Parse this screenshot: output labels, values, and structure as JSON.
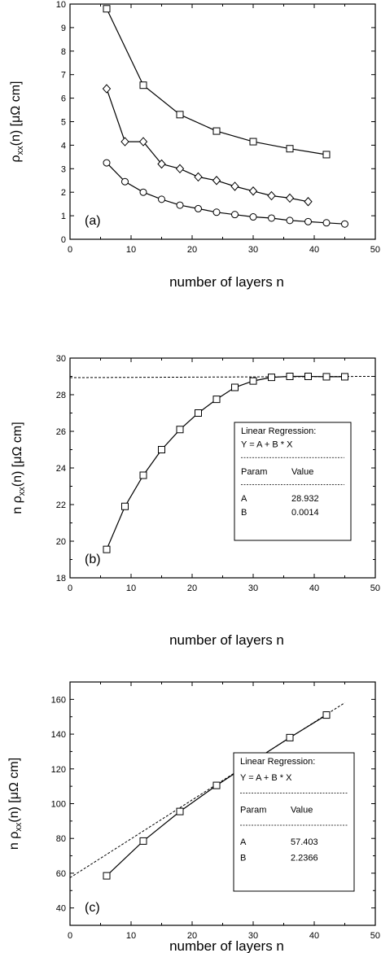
{
  "chart_data": [
    {
      "type": "line",
      "panel_label": "(a)",
      "xlabel": "number of layers n",
      "ylabel": "ρxx(n)  [μΩ cm]",
      "xlim": [
        0,
        50
      ],
      "ylim": [
        0,
        10
      ],
      "xticks": [
        "0",
        "10",
        "20",
        "30",
        "40",
        "50"
      ],
      "yticks": [
        "0",
        "1",
        "2",
        "3",
        "4",
        "5",
        "6",
        "7",
        "8",
        "9",
        "10"
      ],
      "grid": false,
      "series": [
        {
          "marker": "square",
          "x": [
            6,
            12,
            18,
            24,
            30,
            36,
            42
          ],
          "y": [
            9.8,
            6.55,
            5.3,
            4.6,
            4.15,
            3.85,
            3.6
          ]
        },
        {
          "marker": "diamond",
          "x": [
            6,
            9,
            12,
            15,
            18,
            21,
            24,
            27,
            30,
            33,
            36,
            39
          ],
          "y": [
            6.4,
            4.15,
            4.15,
            3.2,
            3.0,
            2.65,
            2.5,
            2.25,
            2.05,
            1.85,
            1.75,
            1.6
          ]
        },
        {
          "marker": "circle",
          "x": [
            6,
            9,
            12,
            15,
            18,
            21,
            24,
            27,
            30,
            33,
            36,
            39,
            42,
            45
          ],
          "y": [
            3.25,
            2.45,
            2.0,
            1.7,
            1.45,
            1.3,
            1.15,
            1.05,
            0.95,
            0.9,
            0.8,
            0.75,
            0.7,
            0.65
          ]
        }
      ]
    },
    {
      "type": "line",
      "panel_label": "(b)",
      "xlabel": "number of layers n",
      "ylabel": "n ρxx(n)  [μΩ cm]",
      "xlim": [
        0,
        50
      ],
      "ylim": [
        18,
        30
      ],
      "xticks": [
        "0",
        "10",
        "20",
        "30",
        "40",
        "50"
      ],
      "yticks": [
        "18",
        "20",
        "22",
        "24",
        "26",
        "28",
        "30"
      ],
      "grid": false,
      "series": [
        {
          "marker": "square",
          "x": [
            6,
            9,
            12,
            15,
            18,
            21,
            24,
            27,
            30,
            33,
            36,
            39,
            42,
            45
          ],
          "y": [
            19.55,
            21.9,
            23.6,
            25.0,
            26.1,
            27.0,
            27.75,
            28.4,
            28.75,
            28.95,
            29.0,
            29.0,
            28.98,
            28.98
          ]
        }
      ],
      "fit": {
        "a": 28.932,
        "b": 0.0014,
        "x_range": [
          0,
          50
        ]
      },
      "legend_box": {
        "title": "Linear Regression:",
        "equation": "Y = A + B * X",
        "separator": "---------------------------------",
        "header_param": "Param",
        "header_value": "Value",
        "rows": [
          {
            "param": "A",
            "value": "28.932"
          },
          {
            "param": "B",
            "value": "0.0014"
          }
        ]
      }
    },
    {
      "type": "line",
      "panel_label": "(c)",
      "xlabel": "number of layers n",
      "ylabel": "n ρxx(n)  [μΩ cm]",
      "xlim": [
        0,
        50
      ],
      "ylim": [
        30,
        170
      ],
      "xticks": [
        "0",
        "10",
        "20",
        "30",
        "40",
        "50"
      ],
      "yticks": [
        "40",
        "60",
        "80",
        "100",
        "120",
        "140",
        "160"
      ],
      "grid": false,
      "series": [
        {
          "marker": "square",
          "x": [
            6,
            12,
            18,
            24,
            30,
            36,
            42
          ],
          "y": [
            58.5,
            78.5,
            95.5,
            110.5,
            124.5,
            138.0,
            151.0
          ]
        }
      ],
      "fit": {
        "a": 57.403,
        "b": 2.2366,
        "x_range": [
          0,
          45
        ]
      },
      "legend_box": {
        "title": "Linear Regression:",
        "equation": "Y = A + B * X",
        "separator": "---------------------------------",
        "header_param": "Param",
        "header_value": "Value",
        "rows": [
          {
            "param": "A",
            "value": "57.403"
          },
          {
            "param": "B",
            "value": "2.2366"
          }
        ]
      }
    }
  ]
}
